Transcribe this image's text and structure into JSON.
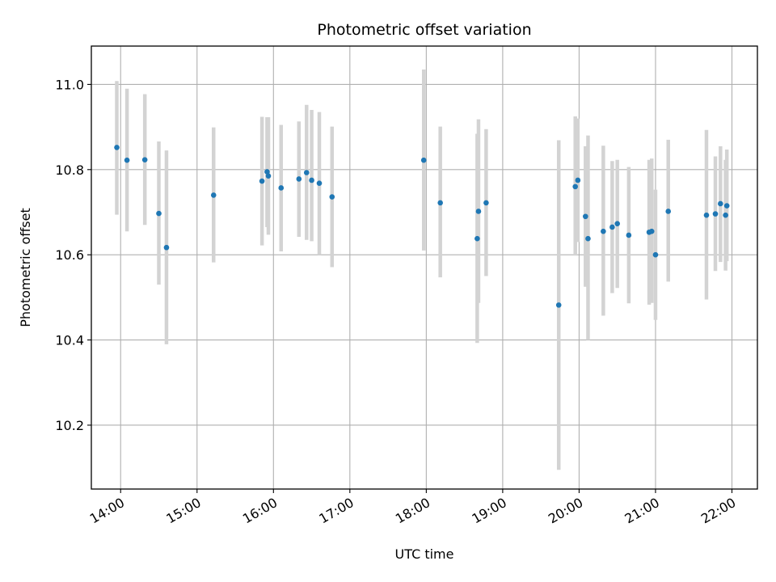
{
  "chart_data": {
    "type": "scatter",
    "title": "Photometric offset variation",
    "xlabel": "UTC time",
    "ylabel": "Photometric offset",
    "x_tick_labels": [
      "14:00",
      "15:00",
      "16:00",
      "17:00",
      "18:00",
      "19:00",
      "20:00",
      "21:00",
      "22:00"
    ],
    "y_tick_labels": [
      "10.2",
      "10.4",
      "10.6",
      "10.8",
      "11.0"
    ],
    "y_ticks": [
      10.2,
      10.4,
      10.6,
      10.8,
      11.0
    ],
    "x_ticks": [
      "14:00",
      "15:00",
      "16:00",
      "17:00",
      "18:00",
      "19:00",
      "20:00",
      "21:00",
      "22:00"
    ],
    "xlim": [
      "13:37",
      "22:20"
    ],
    "ylim": [
      10.05,
      11.09
    ],
    "grid": true,
    "colors": {
      "points": "#1f77b4",
      "errorbars": "#d3d3d3",
      "grid": "#b0b0b0"
    },
    "points": [
      {
        "t": "13:57",
        "y": 10.852,
        "lo": 10.694,
        "hi": 11.008
      },
      {
        "t": "14:05",
        "y": 10.822,
        "lo": 10.655,
        "hi": 10.99
      },
      {
        "t": "14:19",
        "y": 10.823,
        "lo": 10.67,
        "hi": 10.977
      },
      {
        "t": "14:30",
        "y": 10.697,
        "lo": 10.53,
        "hi": 10.866
      },
      {
        "t": "14:36",
        "y": 10.617,
        "lo": 10.39,
        "hi": 10.845
      },
      {
        "t": "15:13",
        "y": 10.74,
        "lo": 10.582,
        "hi": 10.899
      },
      {
        "t": "15:51",
        "y": 10.773,
        "lo": 10.622,
        "hi": 10.924
      },
      {
        "t": "15:55",
        "y": 10.795,
        "lo": 10.665,
        "hi": 10.923
      },
      {
        "t": "15:56",
        "y": 10.785,
        "lo": 10.647,
        "hi": 10.923
      },
      {
        "t": "16:06",
        "y": 10.757,
        "lo": 10.608,
        "hi": 10.905
      },
      {
        "t": "16:20",
        "y": 10.778,
        "lo": 10.642,
        "hi": 10.913
      },
      {
        "t": "16:26",
        "y": 10.793,
        "lo": 10.635,
        "hi": 10.952
      },
      {
        "t": "16:30",
        "y": 10.775,
        "lo": 10.632,
        "hi": 10.94
      },
      {
        "t": "16:36",
        "y": 10.768,
        "lo": 10.6,
        "hi": 10.935
      },
      {
        "t": "16:46",
        "y": 10.736,
        "lo": 10.571,
        "hi": 10.901
      },
      {
        "t": "17:58",
        "y": 10.822,
        "lo": 10.61,
        "hi": 11.035
      },
      {
        "t": "18:11",
        "y": 10.722,
        "lo": 10.547,
        "hi": 10.901
      },
      {
        "t": "18:40",
        "y": 10.638,
        "lo": 10.393,
        "hi": 10.884
      },
      {
        "t": "18:41",
        "y": 10.702,
        "lo": 10.487,
        "hi": 10.918
      },
      {
        "t": "18:47",
        "y": 10.722,
        "lo": 10.55,
        "hi": 10.895
      },
      {
        "t": "19:44",
        "y": 10.482,
        "lo": 10.095,
        "hi": 10.869
      },
      {
        "t": "19:57",
        "y": 10.76,
        "lo": 10.598,
        "hi": 10.925
      },
      {
        "t": "19:59",
        "y": 10.775,
        "lo": 10.63,
        "hi": 10.92
      },
      {
        "t": "20:05",
        "y": 10.69,
        "lo": 10.525,
        "hi": 10.855
      },
      {
        "t": "20:07",
        "y": 10.638,
        "lo": 10.4,
        "hi": 10.88
      },
      {
        "t": "20:19",
        "y": 10.655,
        "lo": 10.457,
        "hi": 10.856
      },
      {
        "t": "20:26",
        "y": 10.665,
        "lo": 10.51,
        "hi": 10.82
      },
      {
        "t": "20:30",
        "y": 10.673,
        "lo": 10.522,
        "hi": 10.823
      },
      {
        "t": "20:39",
        "y": 10.646,
        "lo": 10.486,
        "hi": 10.806
      },
      {
        "t": "20:55",
        "y": 10.653,
        "lo": 10.483,
        "hi": 10.823
      },
      {
        "t": "20:57",
        "y": 10.655,
        "lo": 10.487,
        "hi": 10.826
      },
      {
        "t": "21:00",
        "y": 10.6,
        "lo": 10.447,
        "hi": 10.753
      },
      {
        "t": "21:10",
        "y": 10.702,
        "lo": 10.537,
        "hi": 10.87
      },
      {
        "t": "21:40",
        "y": 10.693,
        "lo": 10.495,
        "hi": 10.893
      },
      {
        "t": "21:47",
        "y": 10.696,
        "lo": 10.562,
        "hi": 10.831
      },
      {
        "t": "21:51",
        "y": 10.72,
        "lo": 10.583,
        "hi": 10.855
      },
      {
        "t": "21:55",
        "y": 10.693,
        "lo": 10.563,
        "hi": 10.823
      },
      {
        "t": "21:56",
        "y": 10.715,
        "lo": 10.585,
        "hi": 10.847
      }
    ]
  }
}
